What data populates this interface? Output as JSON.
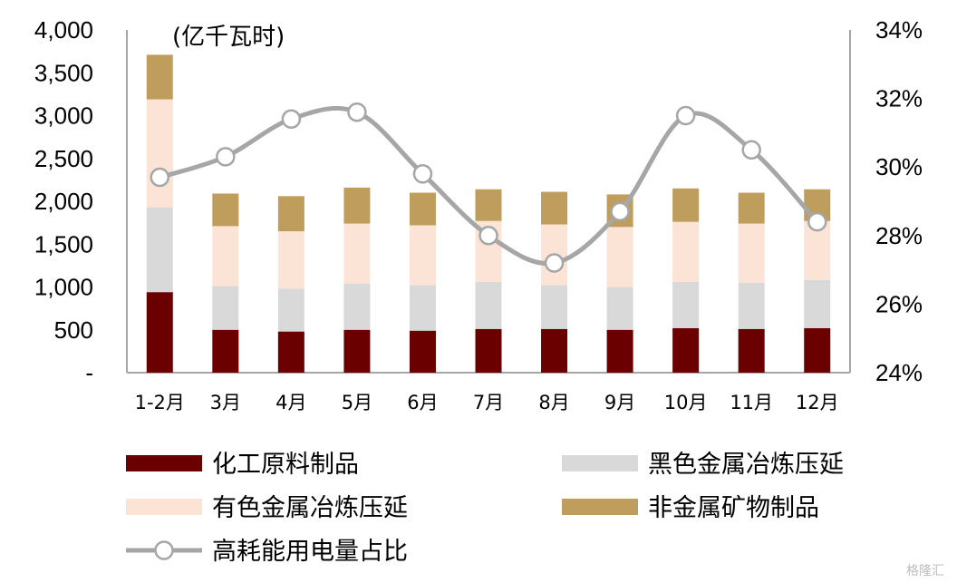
{
  "chart_data": {
    "type": "bar",
    "stacked": true,
    "unit_label": "(亿千瓦时)",
    "categories": [
      "1-2月",
      "3月",
      "4月",
      "5月",
      "6月",
      "7月",
      "8月",
      "9月",
      "10月",
      "11月",
      "12月"
    ],
    "series": [
      {
        "name": "化工原料制品",
        "color": "#6b0000",
        "values": [
          940,
          500,
          480,
          500,
          490,
          510,
          510,
          500,
          520,
          510,
          520
        ]
      },
      {
        "name": "黑色金属冶炼压延",
        "color": "#d9d9d9",
        "values": [
          990,
          510,
          500,
          540,
          530,
          550,
          510,
          500,
          540,
          540,
          560
        ]
      },
      {
        "name": "有色金属冶炼压延",
        "color": "#fbe3d6",
        "values": [
          1260,
          700,
          670,
          700,
          700,
          710,
          710,
          700,
          700,
          690,
          690
        ]
      },
      {
        "name": "非金属矿物制品",
        "color": "#bf9e5d",
        "values": [
          520,
          380,
          410,
          420,
          380,
          370,
          380,
          380,
          390,
          360,
          370
        ]
      }
    ],
    "line_series": {
      "name": "高耗能用电量占比",
      "color": "#a6a6a6",
      "values": [
        29.7,
        30.3,
        31.4,
        31.6,
        29.8,
        28.0,
        27.2,
        28.7,
        31.5,
        30.5,
        28.4
      ]
    },
    "y_left": {
      "ticks": [
        "-",
        "500",
        "1,000",
        "1,500",
        "2,000",
        "2,500",
        "3,000",
        "3,500",
        "4,000"
      ],
      "range": [
        0,
        4000
      ]
    },
    "y_right": {
      "ticks": [
        "24%",
        "26%",
        "28%",
        "30%",
        "32%",
        "34%"
      ],
      "range": [
        24,
        34
      ]
    },
    "legend_position": "bottom"
  },
  "watermark": "格隆汇"
}
